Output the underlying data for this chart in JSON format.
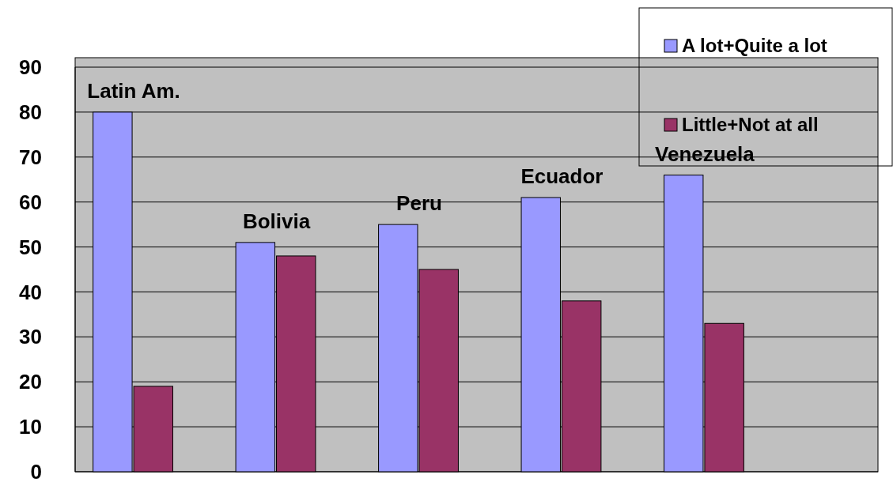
{
  "chart_data": {
    "type": "bar",
    "categories": [
      "Latin Am.",
      "Bolivia",
      "Peru",
      "Ecuador",
      "Venezuela"
    ],
    "series": [
      {
        "name": "A lot+Quite a lot",
        "color": "#9999ff",
        "values": [
          80,
          51,
          55,
          61,
          66
        ]
      },
      {
        "name": "Little+Not at all",
        "color": "#993366",
        "values": [
          19,
          48,
          45,
          38,
          33
        ]
      }
    ],
    "ylim": [
      0,
      90
    ],
    "yticks": [
      0,
      10,
      20,
      30,
      40,
      50,
      60,
      70,
      80,
      90
    ],
    "grid": "y",
    "legend": "top right"
  }
}
